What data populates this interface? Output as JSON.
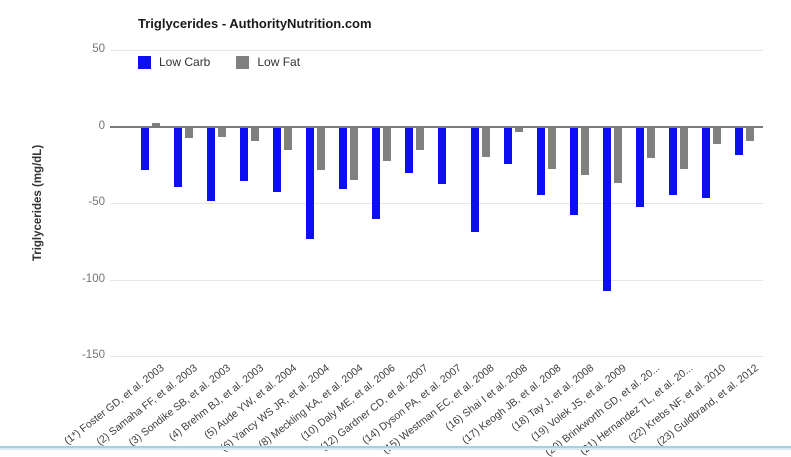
{
  "chart": {
    "title": "Triglycerides - AuthorityNutrition.com",
    "y_axis_title": "Triglycerides (mg/dL)"
  },
  "chart_data": {
    "type": "bar",
    "title": "Triglycerides - AuthorityNutrition.com",
    "xlabel": "",
    "ylabel": "Triglycerides (mg/dL)",
    "ylim": [
      -150,
      50
    ],
    "yticks": [
      50,
      0,
      -50,
      -100,
      -150
    ],
    "grid": true,
    "legend_position": "top-left",
    "categories": [
      "(1*) Foster GD, et al. 2003",
      "(2) Samaha FF, et al. 2003",
      "(3) Sondike SB, et al. 2003",
      "(4) Brehm BJ, et al. 2003",
      "(5) Aude YW, et al. 2004",
      "(6) Yancy WS JR, et al. 2004",
      "(8) Meckling KA, et al. 2004",
      "(10) Daly ME, et al. 2006",
      "(12) Gardner CD, et al. 2007",
      "(14) Dyson PA, et al. 2007",
      "(15) Westman EC, et al. 2008",
      "(16) Shai I et al. 2008",
      "(17) Keogh JB, et al. 2008",
      "(18) Tay J, et al. 2008",
      "(19) Volek JS, et al. 2009",
      "(20) Brinkworth GD, et al. 20...",
      "(21) Hernandez TL, et al. 20...",
      "(22) Krebs NF, et al. 2010",
      "(23) Guldbrand, et al. 2012"
    ],
    "series": [
      {
        "name": "Low Carb",
        "color": "#0d0ff2",
        "values": [
          -28,
          -39,
          -48,
          -35,
          -42,
          -73,
          -40,
          -60,
          -30,
          -37,
          -68,
          -24,
          -44,
          -57,
          -107,
          -52,
          -44,
          -46,
          -18
        ]
      },
      {
        "name": "Low Fat",
        "color": "#808080",
        "values": [
          2,
          -7,
          -6,
          -9,
          -15,
          -28,
          -34,
          -22,
          -15,
          0,
          -19,
          -3,
          -27,
          -31,
          -36,
          -20,
          -27,
          -11,
          -9
        ]
      }
    ]
  },
  "colors": {
    "gridline": "#e6e6e6",
    "zero_line": "#7a7a7a",
    "divider_blue": "#a9d0e2"
  }
}
